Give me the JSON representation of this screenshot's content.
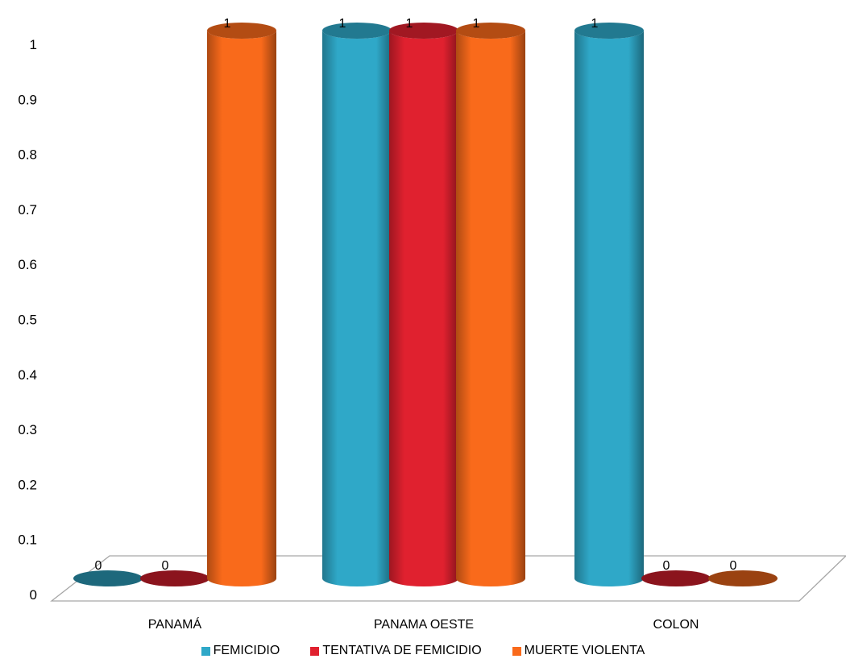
{
  "chart_data": {
    "type": "bar",
    "style": "3d-cylinder",
    "categories": [
      "PANAMÁ",
      "PANAMA OESTE",
      "COLON"
    ],
    "series": [
      {
        "name": "FEMICIDIO",
        "values": [
          0,
          1,
          1
        ],
        "color": "#2fa8c8"
      },
      {
        "name": "TENTATIVA DE FEMICIDIO",
        "values": [
          0,
          1,
          0
        ],
        "color": "#e0212f"
      },
      {
        "name": "MUERTE VIOLENTA",
        "values": [
          1,
          1,
          0
        ],
        "color": "#f96a1b"
      }
    ],
    "yticks": [
      "0",
      "0.1",
      "0.2",
      "0.3",
      "0.4",
      "0.5",
      "0.6",
      "0.7",
      "0.8",
      "0.9",
      "1"
    ],
    "ylim": [
      0,
      1
    ],
    "grid": false,
    "legend": "bottom"
  }
}
